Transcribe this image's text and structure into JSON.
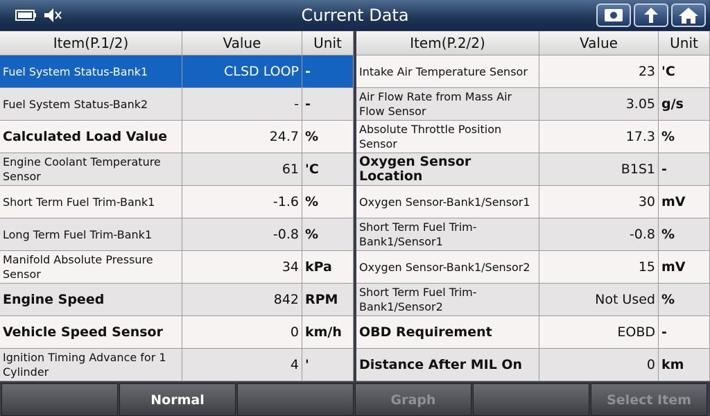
{
  "header": {
    "title": "Current Data"
  },
  "tables": [
    {
      "columns": [
        "Item(P.1/2)",
        "Value",
        "Unit"
      ],
      "rows": [
        [
          "Fuel System Status-Bank1",
          "CLSD LOOP",
          "-"
        ],
        [
          "Fuel System Status-Bank2",
          "-",
          "-"
        ],
        [
          "Calculated Load Value",
          "24.7",
          "%"
        ],
        [
          "Engine Coolant Temperature Sensor",
          "61",
          "'C"
        ],
        [
          "Short Term Fuel Trim-Bank1",
          "-1.6",
          "%"
        ],
        [
          "Long Term Fuel Trim-Bank1",
          "-0.8",
          "%"
        ],
        [
          "Manifold Absolute Pressure Sensor",
          "34",
          "kPa"
        ],
        [
          "Engine Speed",
          "842",
          "RPM"
        ],
        [
          "Vehicle Speed Sensor",
          "0",
          "km/h"
        ],
        [
          "Ignition Timing Advance for 1 Cylinder",
          "4",
          "'"
        ]
      ]
    },
    {
      "columns": [
        "Item(P.2/2)",
        "Value",
        "Unit"
      ],
      "rows": [
        [
          "Intake Air Temperature Sensor",
          "23",
          "'C"
        ],
        [
          "Air Flow Rate from Mass Air Flow Sensor",
          "3.05",
          "g/s"
        ],
        [
          "Absolute Throttle Position Sensor",
          "17.3",
          "%"
        ],
        [
          "Oxygen Sensor Location",
          "B1S1",
          "-"
        ],
        [
          "Oxygen Sensor-Bank1/Sensor1",
          "30",
          "mV"
        ],
        [
          "Short Term Fuel Trim-Bank1/Sensor1",
          "-0.8",
          "%"
        ],
        [
          "Oxygen Sensor-Bank1/Sensor2",
          "15",
          "mV"
        ],
        [
          "Short Term Fuel Trim-Bank1/Sensor2",
          "Not Used",
          "%"
        ],
        [
          "OBD Requirement",
          "EOBD",
          "-"
        ],
        [
          "Distance After MIL On",
          "0",
          "km"
        ]
      ]
    }
  ],
  "footer": {
    "normal": "Normal",
    "graph": "Graph",
    "select_item": "Select Item"
  }
}
